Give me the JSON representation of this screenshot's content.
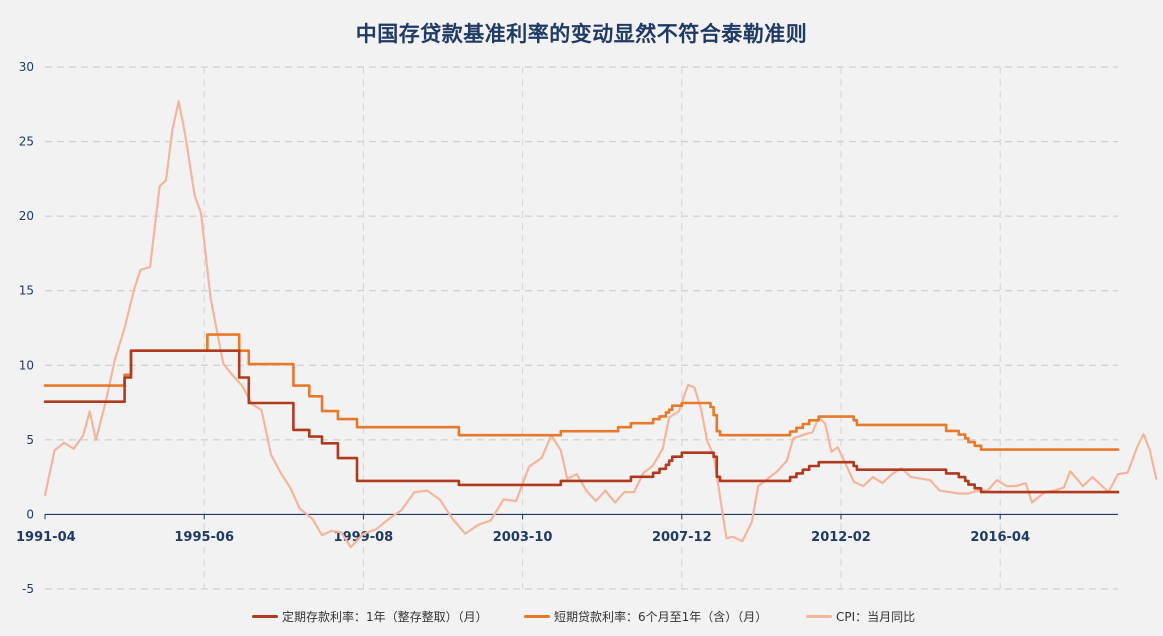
{
  "chart_data": {
    "type": "line",
    "title": "中国存贷款基准利率的变动显然不符合泰勒准则",
    "ylim": [
      -5,
      30
    ],
    "yticks": [
      -5,
      0,
      5,
      10,
      15,
      20,
      25,
      30
    ],
    "xlim": [
      "1991-04",
      "2019-05"
    ],
    "xticks": [
      "1991-04",
      "1995-06",
      "1999-08",
      "2003-10",
      "2007-12",
      "2012-02",
      "2016-04"
    ],
    "grid": true,
    "legend_position": "bottom-center",
    "series": [
      {
        "name": "定期存款利率：1年（整存整取）（月）",
        "color": "#b03a1e",
        "step": true,
        "points": [
          [
            "1991-04",
            7.56
          ],
          [
            "1993-05",
            9.18
          ],
          [
            "1993-07",
            10.98
          ],
          [
            "1996-05",
            9.18
          ],
          [
            "1996-08",
            7.47
          ],
          [
            "1997-10",
            5.67
          ],
          [
            "1998-03",
            5.22
          ],
          [
            "1998-07",
            4.77
          ],
          [
            "1998-12",
            3.78
          ],
          [
            "1999-06",
            2.25
          ],
          [
            "2002-02",
            1.98
          ],
          [
            "2004-10",
            2.25
          ],
          [
            "2006-08",
            2.52
          ],
          [
            "2007-03",
            2.79
          ],
          [
            "2007-05",
            3.06
          ],
          [
            "2007-07",
            3.33
          ],
          [
            "2007-08",
            3.6
          ],
          [
            "2007-09",
            3.87
          ],
          [
            "2007-12",
            4.14
          ],
          [
            "2008-10",
            3.87
          ],
          [
            "2008-11",
            2.52
          ],
          [
            "2008-12",
            2.25
          ],
          [
            "2010-10",
            2.5
          ],
          [
            "2010-12",
            2.75
          ],
          [
            "2011-02",
            3.0
          ],
          [
            "2011-04",
            3.25
          ],
          [
            "2011-07",
            3.5
          ],
          [
            "2012-06",
            3.25
          ],
          [
            "2012-07",
            3.0
          ],
          [
            "2014-11",
            2.75
          ],
          [
            "2015-03",
            2.5
          ],
          [
            "2015-05",
            2.25
          ],
          [
            "2015-06",
            2.0
          ],
          [
            "2015-08",
            1.75
          ],
          [
            "2015-10",
            1.5
          ],
          [
            "2019-05",
            1.5
          ]
        ]
      },
      {
        "name": "短期贷款利率：6个月至1年（含）（月）",
        "color": "#e8792a",
        "step": true,
        "points": [
          [
            "1991-04",
            8.64
          ],
          [
            "1993-05",
            9.36
          ],
          [
            "1993-07",
            10.98
          ],
          [
            "1995-01",
            10.98
          ],
          [
            "1995-07",
            12.06
          ],
          [
            "1996-05",
            10.98
          ],
          [
            "1996-08",
            10.08
          ],
          [
            "1997-10",
            8.64
          ],
          [
            "1998-03",
            7.92
          ],
          [
            "1998-07",
            6.93
          ],
          [
            "1998-12",
            6.39
          ],
          [
            "1999-06",
            5.85
          ],
          [
            "2002-02",
            5.31
          ],
          [
            "2004-10",
            5.58
          ],
          [
            "2006-04",
            5.85
          ],
          [
            "2006-08",
            6.12
          ],
          [
            "2007-03",
            6.39
          ],
          [
            "2007-05",
            6.57
          ],
          [
            "2007-07",
            6.84
          ],
          [
            "2007-08",
            7.02
          ],
          [
            "2007-09",
            7.29
          ],
          [
            "2007-12",
            7.47
          ],
          [
            "2008-09",
            7.2
          ],
          [
            "2008-10",
            6.66
          ],
          [
            "2008-11",
            5.58
          ],
          [
            "2008-12",
            5.31
          ],
          [
            "2010-10",
            5.56
          ],
          [
            "2010-12",
            5.81
          ],
          [
            "2011-02",
            6.06
          ],
          [
            "2011-04",
            6.31
          ],
          [
            "2011-07",
            6.56
          ],
          [
            "2012-06",
            6.31
          ],
          [
            "2012-07",
            6.0
          ],
          [
            "2014-11",
            5.6
          ],
          [
            "2015-03",
            5.35
          ],
          [
            "2015-05",
            5.1
          ],
          [
            "2015-06",
            4.85
          ],
          [
            "2015-08",
            4.6
          ],
          [
            "2015-10",
            4.35
          ],
          [
            "2019-05",
            4.35
          ]
        ]
      },
      {
        "name": "CPI：当月同比",
        "color": "#f4b59c",
        "step": false,
        "points": [
          [
            "1991-04",
            1.3
          ],
          [
            "1991-07",
            4.3
          ],
          [
            "1991-10",
            4.8
          ],
          [
            "1992-01",
            4.4
          ],
          [
            "1992-04",
            5.3
          ],
          [
            "1992-06",
            6.9
          ],
          [
            "1992-08",
            5.0
          ],
          [
            "1992-11",
            7.5
          ],
          [
            "1993-02",
            10.4
          ],
          [
            "1993-05",
            12.5
          ],
          [
            "1993-08",
            15.1
          ],
          [
            "1993-10",
            16.4
          ],
          [
            "1994-01",
            16.6
          ],
          [
            "1994-04",
            22.0
          ],
          [
            "1994-06",
            22.4
          ],
          [
            "1994-08",
            25.8
          ],
          [
            "1994-10",
            27.7
          ],
          [
            "1994-12",
            25.5
          ],
          [
            "1995-03",
            21.4
          ],
          [
            "1995-05",
            20.2
          ],
          [
            "1995-08",
            14.5
          ],
          [
            "1995-12",
            10.1
          ],
          [
            "1996-03",
            9.3
          ],
          [
            "1996-06",
            8.6
          ],
          [
            "1996-09",
            7.4
          ],
          [
            "1996-12",
            7.0
          ],
          [
            "1997-03",
            4.0
          ],
          [
            "1997-06",
            2.8
          ],
          [
            "1997-09",
            1.8
          ],
          [
            "1997-12",
            0.4
          ],
          [
            "1998-04",
            -0.3
          ],
          [
            "1998-07",
            -1.4
          ],
          [
            "1998-10",
            -1.1
          ],
          [
            "1999-01",
            -1.2
          ],
          [
            "1999-04",
            -2.2
          ],
          [
            "1999-08",
            -1.3
          ],
          [
            "1999-12",
            -1.0
          ],
          [
            "2000-04",
            -0.3
          ],
          [
            "2000-08",
            0.3
          ],
          [
            "2000-12",
            1.5
          ],
          [
            "2001-04",
            1.6
          ],
          [
            "2001-08",
            1.0
          ],
          [
            "2001-12",
            -0.3
          ],
          [
            "2002-04",
            -1.3
          ],
          [
            "2002-08",
            -0.7
          ],
          [
            "2002-12",
            -0.4
          ],
          [
            "2003-04",
            1.0
          ],
          [
            "2003-08",
            0.9
          ],
          [
            "2003-12",
            3.2
          ],
          [
            "2004-04",
            3.8
          ],
          [
            "2004-07",
            5.3
          ],
          [
            "2004-10",
            4.3
          ],
          [
            "2004-12",
            2.4
          ],
          [
            "2005-03",
            2.7
          ],
          [
            "2005-06",
            1.6
          ],
          [
            "2005-09",
            0.9
          ],
          [
            "2005-12",
            1.6
          ],
          [
            "2006-03",
            0.8
          ],
          [
            "2006-06",
            1.5
          ],
          [
            "2006-09",
            1.5
          ],
          [
            "2006-12",
            2.8
          ],
          [
            "2007-03",
            3.3
          ],
          [
            "2007-06",
            4.4
          ],
          [
            "2007-08",
            6.5
          ],
          [
            "2007-11",
            6.9
          ],
          [
            "2008-02",
            8.7
          ],
          [
            "2008-04",
            8.5
          ],
          [
            "2008-06",
            7.1
          ],
          [
            "2008-08",
            4.9
          ],
          [
            "2008-10",
            4.0
          ],
          [
            "2008-12",
            1.2
          ],
          [
            "2009-02",
            -1.6
          ],
          [
            "2009-04",
            -1.5
          ],
          [
            "2009-07",
            -1.8
          ],
          [
            "2009-10",
            -0.5
          ],
          [
            "2009-12",
            1.9
          ],
          [
            "2010-03",
            2.4
          ],
          [
            "2010-06",
            2.9
          ],
          [
            "2010-09",
            3.6
          ],
          [
            "2010-11",
            5.1
          ],
          [
            "2011-03",
            5.4
          ],
          [
            "2011-05",
            5.5
          ],
          [
            "2011-07",
            6.5
          ],
          [
            "2011-09",
            6.1
          ],
          [
            "2011-11",
            4.2
          ],
          [
            "2012-01",
            4.5
          ],
          [
            "2012-03",
            3.6
          ],
          [
            "2012-06",
            2.2
          ],
          [
            "2012-09",
            1.9
          ],
          [
            "2012-12",
            2.5
          ],
          [
            "2013-03",
            2.1
          ],
          [
            "2013-06",
            2.7
          ],
          [
            "2013-09",
            3.1
          ],
          [
            "2013-12",
            2.5
          ],
          [
            "2014-03",
            2.4
          ],
          [
            "2014-06",
            2.3
          ],
          [
            "2014-09",
            1.6
          ],
          [
            "2014-12",
            1.5
          ],
          [
            "2015-03",
            1.4
          ],
          [
            "2015-06",
            1.4
          ],
          [
            "2015-09",
            1.6
          ],
          [
            "2015-12",
            1.6
          ],
          [
            "2016-03",
            2.3
          ],
          [
            "2016-06",
            1.9
          ],
          [
            "2016-09",
            1.9
          ],
          [
            "2016-12",
            2.1
          ],
          [
            "2017-02",
            0.8
          ],
          [
            "2017-06",
            1.5
          ],
          [
            "2017-09",
            1.6
          ],
          [
            "2017-12",
            1.8
          ],
          [
            "2018-02",
            2.9
          ],
          [
            "2018-06",
            1.9
          ],
          [
            "2018-09",
            2.5
          ],
          [
            "2018-12",
            1.9
          ],
          [
            "2019-02",
            1.5
          ],
          [
            "2019-05",
            2.7
          ],
          [
            "2019-08",
            2.8
          ],
          [
            "2019-11",
            4.5
          ],
          [
            "2020-01",
            5.4
          ],
          [
            "2020-03",
            4.3
          ],
          [
            "2020-05",
            2.4
          ]
        ]
      }
    ]
  }
}
